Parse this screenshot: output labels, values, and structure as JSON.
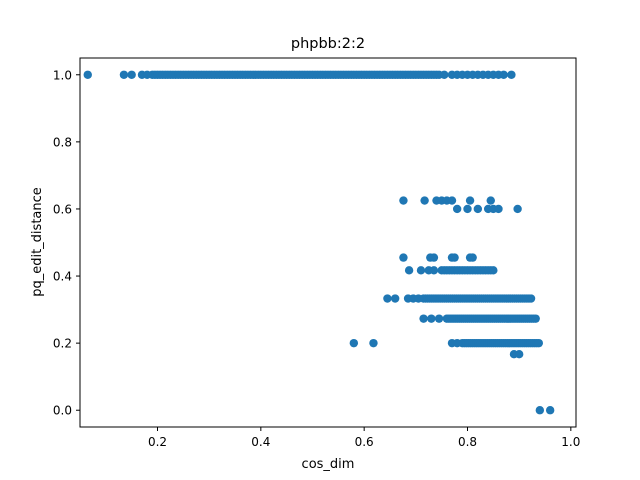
{
  "chart_data": {
    "type": "scatter",
    "title": "phpbb:2:2",
    "xlabel": "cos_dim",
    "ylabel": "pq_edit_distance",
    "xlim": [
      0.05,
      1.01
    ],
    "ylim": [
      -0.05,
      1.05
    ],
    "xticks": [
      0.2,
      0.4,
      0.6,
      0.8,
      1.0
    ],
    "xtick_labels": [
      "0.2",
      "0.4",
      "0.6",
      "0.8",
      "1.0"
    ],
    "yticks": [
      0.0,
      0.2,
      0.4,
      0.6,
      0.8,
      1.0
    ],
    "ytick_labels": [
      "0.0",
      "0.2",
      "0.4",
      "0.6",
      "0.8",
      "1.0"
    ],
    "grid": false,
    "marker_color": "#1f77b4",
    "series": [
      {
        "segments": [
          {
            "y": 1.0,
            "x_from": 0.19,
            "x_to": 0.74,
            "step": 0.005
          },
          {
            "y": 0.333,
            "x_from": 0.715,
            "x_to": 0.925,
            "step": 0.004
          },
          {
            "y": 0.273,
            "x_from": 0.76,
            "x_to": 0.935,
            "step": 0.004
          },
          {
            "y": 0.2,
            "x_from": 0.79,
            "x_to": 0.94,
            "step": 0.004
          },
          {
            "y": 0.417,
            "x_from": 0.75,
            "x_to": 0.85,
            "step": 0.005
          }
        ],
        "points": [
          [
            0.065,
            1.0
          ],
          [
            0.135,
            1.0
          ],
          [
            0.15,
            1.0
          ],
          [
            0.17,
            1.0
          ],
          [
            0.18,
            1.0
          ],
          [
            0.745,
            1.0
          ],
          [
            0.755,
            1.0
          ],
          [
            0.77,
            1.0
          ],
          [
            0.78,
            1.0
          ],
          [
            0.79,
            1.0
          ],
          [
            0.8,
            1.0
          ],
          [
            0.81,
            1.0
          ],
          [
            0.82,
            1.0
          ],
          [
            0.83,
            1.0
          ],
          [
            0.84,
            1.0
          ],
          [
            0.85,
            1.0
          ],
          [
            0.86,
            1.0
          ],
          [
            0.87,
            1.0
          ],
          [
            0.885,
            1.0
          ],
          [
            0.676,
            0.625
          ],
          [
            0.717,
            0.625
          ],
          [
            0.74,
            0.625
          ],
          [
            0.75,
            0.625
          ],
          [
            0.76,
            0.625
          ],
          [
            0.77,
            0.625
          ],
          [
            0.805,
            0.625
          ],
          [
            0.845,
            0.625
          ],
          [
            0.78,
            0.6
          ],
          [
            0.8,
            0.6
          ],
          [
            0.82,
            0.6
          ],
          [
            0.84,
            0.6
          ],
          [
            0.85,
            0.6
          ],
          [
            0.86,
            0.6
          ],
          [
            0.897,
            0.6
          ],
          [
            0.676,
            0.455
          ],
          [
            0.728,
            0.455
          ],
          [
            0.735,
            0.455
          ],
          [
            0.77,
            0.455
          ],
          [
            0.775,
            0.455
          ],
          [
            0.805,
            0.455
          ],
          [
            0.81,
            0.455
          ],
          [
            0.687,
            0.417
          ],
          [
            0.71,
            0.417
          ],
          [
            0.725,
            0.417
          ],
          [
            0.735,
            0.417
          ],
          [
            0.645,
            0.333
          ],
          [
            0.66,
            0.333
          ],
          [
            0.685,
            0.333
          ],
          [
            0.695,
            0.333
          ],
          [
            0.705,
            0.333
          ],
          [
            0.715,
            0.273
          ],
          [
            0.73,
            0.273
          ],
          [
            0.745,
            0.273
          ],
          [
            0.58,
            0.2
          ],
          [
            0.618,
            0.2
          ],
          [
            0.77,
            0.2
          ],
          [
            0.78,
            0.2
          ],
          [
            0.89,
            0.167
          ],
          [
            0.9,
            0.167
          ],
          [
            0.94,
            0.0
          ],
          [
            0.96,
            0.0
          ]
        ]
      }
    ]
  }
}
